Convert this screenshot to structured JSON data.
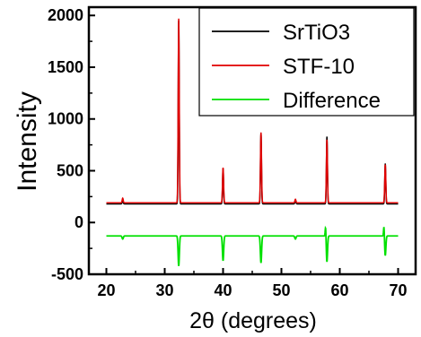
{
  "chart_data": {
    "type": "line",
    "xlabel": "2θ (degrees)",
    "ylabel": "Intensity",
    "xlim": [
      17,
      73
    ],
    "ylim": [
      -500,
      2080
    ],
    "xticks": [
      20,
      30,
      40,
      50,
      60,
      70
    ],
    "yticks": [
      -500,
      0,
      500,
      1000,
      1500,
      2000
    ],
    "grid": false,
    "legend_position": "top-right",
    "baselines": {
      "SrTiO3": 180,
      "STF-10": 190,
      "Difference": -130
    },
    "series": [
      {
        "name": "SrTiO3",
        "color": "#000000",
        "peaks": [
          {
            "x": 22.8,
            "y": 215,
            "w": 0.12
          },
          {
            "x": 32.4,
            "y": 1950,
            "w": 0.12
          },
          {
            "x": 40.0,
            "y": 520,
            "w": 0.12
          },
          {
            "x": 46.5,
            "y": 860,
            "w": 0.12
          },
          {
            "x": 52.4,
            "y": 215,
            "w": 0.12
          },
          {
            "x": 57.8,
            "y": 830,
            "w": 0.12
          },
          {
            "x": 67.8,
            "y": 570,
            "w": 0.12
          }
        ]
      },
      {
        "name": "STF-10",
        "color": "#e00000",
        "peaks": [
          {
            "x": 22.8,
            "y": 235,
            "w": 0.13
          },
          {
            "x": 32.4,
            "y": 1970,
            "w": 0.13
          },
          {
            "x": 40.0,
            "y": 530,
            "w": 0.13
          },
          {
            "x": 46.5,
            "y": 870,
            "w": 0.13
          },
          {
            "x": 52.4,
            "y": 225,
            "w": 0.13
          },
          {
            "x": 57.8,
            "y": 800,
            "w": 0.13
          },
          {
            "x": 67.8,
            "y": 560,
            "w": 0.13
          }
        ]
      },
      {
        "name": "Difference",
        "color": "#00e000",
        "peaks": [
          {
            "x": 22.8,
            "y": -160,
            "w": 0.15
          },
          {
            "x": 32.4,
            "y": -420,
            "w": 0.15
          },
          {
            "x": 40.0,
            "y": -370,
            "w": 0.15
          },
          {
            "x": 46.5,
            "y": -390,
            "w": 0.15
          },
          {
            "x": 52.4,
            "y": -160,
            "w": 0.15
          },
          {
            "x": 57.8,
            "y": -380,
            "w": 0.15
          },
          {
            "x": 67.8,
            "y": -320,
            "w": 0.15
          }
        ],
        "positive_peaks": [
          {
            "x": 57.8,
            "y": -30,
            "w": 0.1
          },
          {
            "x": 67.8,
            "y": -30,
            "w": 0.1
          }
        ]
      }
    ]
  }
}
